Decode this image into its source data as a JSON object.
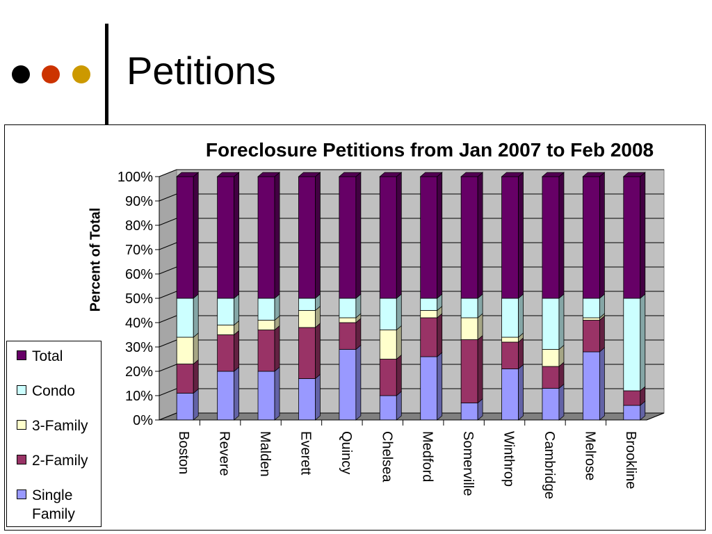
{
  "slide": {
    "title": "Petitions",
    "dots": [
      {
        "name": "black-dot",
        "color": "#000000"
      },
      {
        "name": "red-dot",
        "color": "#cc3300"
      },
      {
        "name": "gold-dot",
        "color": "#cc9900"
      }
    ]
  },
  "chart_data": {
    "type": "bar",
    "stacked": true,
    "percent": true,
    "title": "Foreclosure Petitions from Jan 2007 to Feb 2008",
    "xlabel": "",
    "ylabel": "Percent of Total",
    "ylim": [
      0,
      100
    ],
    "yticks": [
      "0%",
      "10%",
      "20%",
      "30%",
      "40%",
      "50%",
      "60%",
      "70%",
      "80%",
      "90%",
      "100%"
    ],
    "categories": [
      "Boston",
      "Revere",
      "Malden",
      "Everett",
      "Quincy",
      "Chelsea",
      "Medford",
      "Somerville",
      "Winthrop",
      "Cambridge",
      "Melrose",
      "Brookline"
    ],
    "series": [
      {
        "name": "Single Family",
        "color": "#9999ff",
        "values": [
          11,
          20,
          20,
          17,
          29,
          10,
          26,
          7,
          21,
          13,
          28,
          6
        ]
      },
      {
        "name": "2-Family",
        "color": "#993366",
        "values": [
          12,
          15,
          17,
          21,
          11,
          15,
          16,
          26,
          11,
          9,
          13,
          6
        ]
      },
      {
        "name": "3-Family",
        "color": "#ffffcc",
        "values": [
          11,
          4,
          4,
          7,
          2,
          12,
          3,
          9,
          2,
          7,
          1,
          0
        ]
      },
      {
        "name": "Condo",
        "color": "#ccffff",
        "values": [
          16,
          11,
          9,
          5,
          8,
          13,
          5,
          8,
          16,
          21,
          8,
          38
        ]
      },
      {
        "name": "Total",
        "color": "#660066",
        "values": [
          50,
          50,
          50,
          50,
          50,
          50,
          50,
          50,
          50,
          50,
          50,
          50
        ]
      }
    ],
    "grid": true,
    "legend_position": "left"
  }
}
